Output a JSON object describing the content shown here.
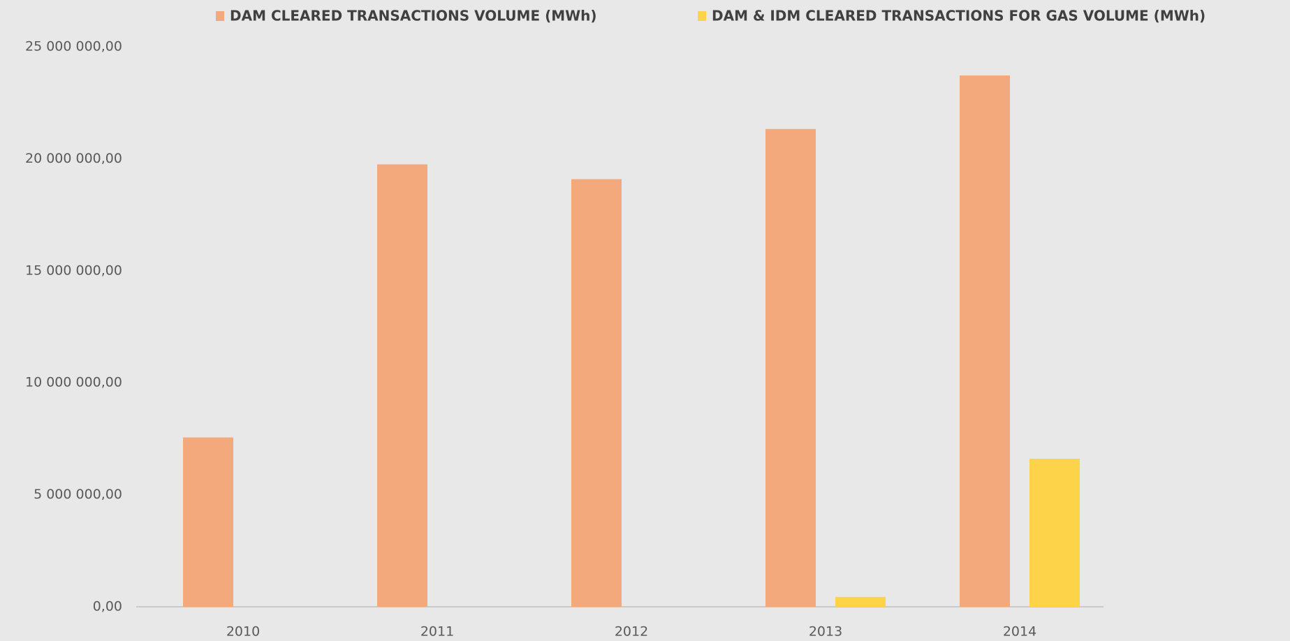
{
  "chart_data": {
    "type": "bar",
    "categories": [
      "2010",
      "2011",
      "2012",
      "2013",
      "2014"
    ],
    "series": [
      {
        "name": "DAM CLEARED TRANSACTIONS VOLUME (MWh)",
        "color": "#f4a97c",
        "values": [
          7560000,
          19750000,
          19090000,
          21330000,
          23720000
        ]
      },
      {
        "name": "DAM & IDM CLEARED TRANSACTIONS FOR GAS VOLUME (MWh)",
        "color": "#fdd34a",
        "values": [
          null,
          null,
          null,
          440000,
          6610000
        ]
      }
    ],
    "ylim": [
      0,
      25000000
    ],
    "yticks": [
      {
        "value": 0,
        "label": "0,00"
      },
      {
        "value": 5000000,
        "label": "5 000 000,00"
      },
      {
        "value": 10000000,
        "label": "10 000 000,00"
      },
      {
        "value": 15000000,
        "label": "15 000 000,00"
      },
      {
        "value": 20000000,
        "label": "20 000 000,00"
      },
      {
        "value": 25000000,
        "label": "25 000 000,00"
      }
    ],
    "grid": false,
    "legend": "top"
  }
}
